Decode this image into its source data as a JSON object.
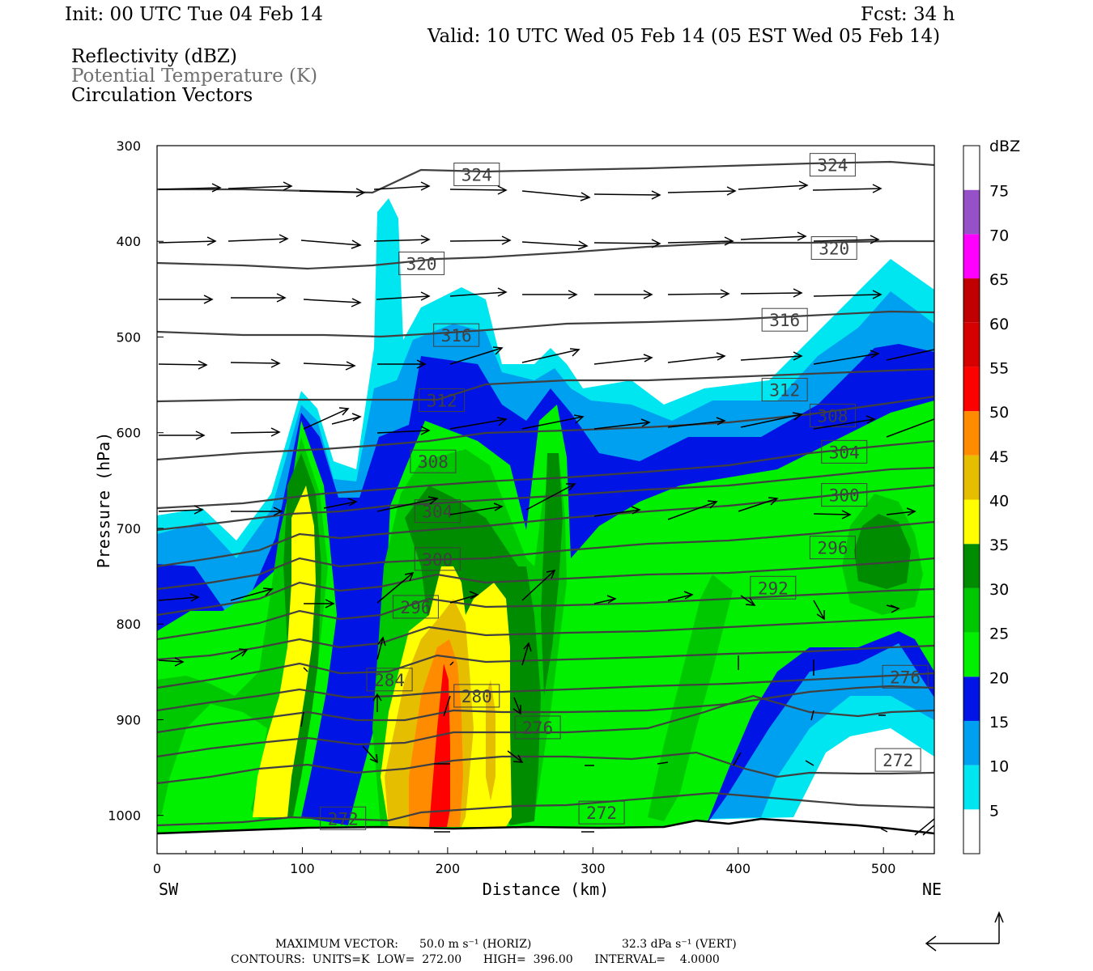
{
  "header": {
    "init": "Init: 00 UTC Tue 04 Feb 14",
    "fcst": "Fcst:   34 h",
    "valid": "Valid: 10 UTC Wed 05 Feb 14 (05 EST Wed 05 Feb 14)",
    "fields": [
      "Reflectivity (dBZ)",
      "Potential Temperature (K)",
      "Circulation Vectors"
    ]
  },
  "footer": {
    "maxvec_label": "MAXIMUM VECTOR:",
    "maxvec_horiz": "50.0 m s⁻¹ (HORIZ)",
    "maxvec_vert": "32.3 dPa s⁻¹ (VERT)",
    "contours": "CONTOURS:  UNITS=K  LOW=  272.00      HIGH=  396.00      INTERVAL=    4.0000"
  },
  "colors": {
    "dbz_5": "#00e6f0",
    "dbz_10": "#00a0f0",
    "dbz_15": "#0014e6",
    "dbz_20": "#00f000",
    "dbz_25": "#00c800",
    "dbz_30": "#008c00",
    "dbz_35": "#ffff00",
    "dbz_40": "#e6be00",
    "dbz_45": "#ff8c00",
    "dbz_50": "#ff0000",
    "dbz_55": "#d70000",
    "dbz_60": "#c00000",
    "dbz_65": "#ff00ff",
    "dbz_70": "#9650c8",
    "contour": "#404040"
  },
  "chart_data": {
    "type": "heatmap",
    "xlabel": "Distance (km)",
    "ylabel": "Pressure (hPa)",
    "xlim": [
      0,
      535
    ],
    "ylim": [
      1040,
      300
    ],
    "x_ticks": [
      0,
      100,
      200,
      300,
      400,
      500
    ],
    "y_ticks": [
      300,
      400,
      500,
      600,
      700,
      800,
      900,
      1000
    ],
    "x_end_labels": {
      "left": "SW",
      "right": "NE"
    },
    "colorbar": {
      "title": "dBZ",
      "levels": [
        5,
        10,
        15,
        20,
        25,
        30,
        35,
        40,
        45,
        50,
        55,
        60,
        65,
        70,
        75
      ]
    },
    "fields": {
      "shaded": "Reflectivity (dBZ)",
      "contours": "Potential Temperature (K)",
      "vectors": "Circulation Vectors"
    },
    "contour_labels": [
      {
        "value": "324",
        "x": 220,
        "p": 330
      },
      {
        "value": "324",
        "x": 465,
        "p": 320
      },
      {
        "value": "320",
        "x": 182,
        "p": 423
      },
      {
        "value": "320",
        "x": 466,
        "p": 407
      },
      {
        "value": "316",
        "x": 206,
        "p": 498
      },
      {
        "value": "316",
        "x": 432,
        "p": 482
      },
      {
        "value": "312",
        "x": 196,
        "p": 566
      },
      {
        "value": "312",
        "x": 432,
        "p": 555
      },
      {
        "value": "308",
        "x": 190,
        "p": 630
      },
      {
        "value": "308",
        "x": 465,
        "p": 582
      },
      {
        "value": "304",
        "x": 193,
        "p": 682
      },
      {
        "value": "304",
        "x": 473,
        "p": 620
      },
      {
        "value": "300",
        "x": 193,
        "p": 732
      },
      {
        "value": "300",
        "x": 473,
        "p": 665
      },
      {
        "value": "296",
        "x": 178,
        "p": 782
      },
      {
        "value": "296",
        "x": 465,
        "p": 720
      },
      {
        "value": "292",
        "x": 424,
        "p": 762
      },
      {
        "value": "284",
        "x": 160,
        "p": 858
      },
      {
        "value": "280",
        "x": 220,
        "p": 875
      },
      {
        "value": "276",
        "x": 262,
        "p": 908
      },
      {
        "value": "276",
        "x": 515,
        "p": 855
      },
      {
        "value": "272",
        "x": 128,
        "p": 1003
      },
      {
        "value": "272",
        "x": 306,
        "p": 997
      },
      {
        "value": "272",
        "x": 510,
        "p": 942
      }
    ]
  }
}
